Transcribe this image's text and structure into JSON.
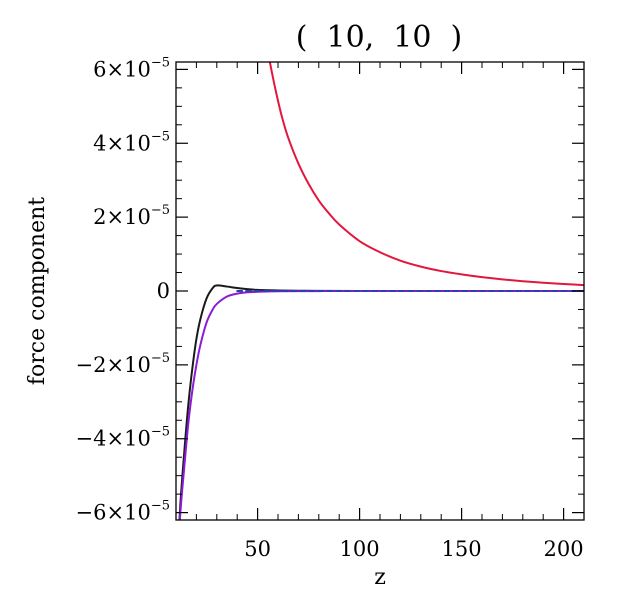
{
  "chart_data": {
    "type": "line",
    "title": "(  10,  10  )",
    "xlabel": "z",
    "ylabel": "force component",
    "xlim": [
      10,
      210
    ],
    "ylim": [
      -6.2e-05,
      6.2e-05
    ],
    "x_ticks": [
      {
        "value": 50,
        "label": "50"
      },
      {
        "value": 100,
        "label": "100"
      },
      {
        "value": 150,
        "label": "150"
      },
      {
        "value": 200,
        "label": "200"
      }
    ],
    "y_ticks": [
      {
        "value": 6e-05,
        "mantissa": "6",
        "times": "×10",
        "exp": "−5"
      },
      {
        "value": 4e-05,
        "mantissa": "4",
        "times": "×10",
        "exp": "−5"
      },
      {
        "value": 2e-05,
        "mantissa": "2",
        "times": "×10",
        "exp": "−5"
      },
      {
        "value": 0,
        "mantissa": "0",
        "times": "",
        "exp": ""
      },
      {
        "value": -2e-05,
        "mantissa": "−2",
        "times": "×10",
        "exp": "−5"
      },
      {
        "value": -4e-05,
        "mantissa": "−4",
        "times": "×10",
        "exp": "−5"
      },
      {
        "value": -6e-05,
        "mantissa": "−6",
        "times": "×10",
        "exp": "−5"
      }
    ],
    "grid": false,
    "series": [
      {
        "color": "#1a1a1a",
        "x": [
          10,
          12,
          14,
          16,
          18,
          20,
          22,
          25,
          28,
          30,
          35,
          40,
          45,
          50,
          60,
          70,
          80,
          100,
          150,
          210
        ],
        "y": [
          -8e-05,
          -5.9e-05,
          -4.4e-05,
          -3.1e-05,
          -2.1e-05,
          -1.3e-05,
          -7.5e-06,
          -2e-06,
          8e-07,
          1.5e-06,
          1.2e-06,
          8e-07,
          5e-07,
          3e-07,
          1.5e-07,
          8e-08,
          4e-08,
          1e-08,
          0,
          0
        ]
      },
      {
        "color": "#8a1bd6",
        "x": [
          10,
          12,
          14,
          16,
          18,
          20,
          22,
          25,
          28,
          30,
          35,
          40,
          45,
          50,
          60,
          70,
          80,
          100,
          150,
          210
        ],
        "y": [
          -8e-05,
          -6.1e-05,
          -4.8e-05,
          -3.6e-05,
          -2.7e-05,
          -2e-05,
          -1.45e-05,
          -8.5e-06,
          -5e-06,
          -3.5e-06,
          -1.5e-06,
          -7e-07,
          -3.5e-07,
          -2e-07,
          -8e-08,
          -4e-08,
          -2e-08,
          0,
          0,
          0
        ]
      },
      {
        "color": "#2a3fb0",
        "dash": true,
        "x": [
          40,
          60,
          80,
          100,
          150,
          210
        ],
        "y": [
          0,
          0,
          0,
          0,
          0,
          0
        ]
      },
      {
        "color": "#e3173d",
        "x": [
          56,
          58,
          60,
          62,
          65,
          70,
          75,
          80,
          85,
          90,
          100,
          110,
          120,
          130,
          140,
          150,
          160,
          170,
          180,
          190,
          200,
          210
        ],
        "y": [
          6.2e-05,
          5.65e-05,
          5.15e-05,
          4.7e-05,
          4.15e-05,
          3.45e-05,
          2.9e-05,
          2.45e-05,
          2.1e-05,
          1.8e-05,
          1.35e-05,
          1.05e-05,
          8.2e-06,
          6.6e-06,
          5.4e-06,
          4.5e-06,
          3.75e-06,
          3.15e-06,
          2.65e-06,
          2.25e-06,
          1.9e-06,
          1.6e-06
        ]
      }
    ]
  }
}
